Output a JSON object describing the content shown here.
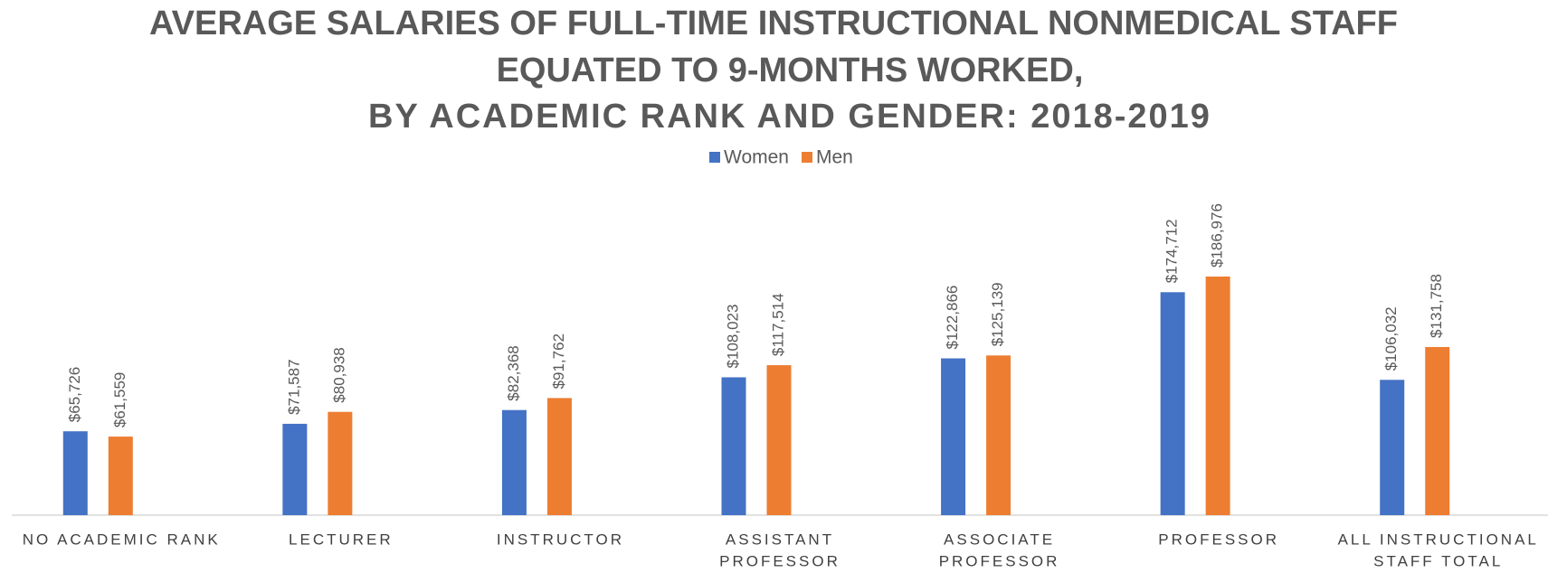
{
  "chart_data": {
    "type": "bar",
    "title": [
      "AVERAGE SALARIES OF FULL-TIME INSTRUCTIONAL NONMEDICAL STAFF",
      "EQUATED TO  9-MONTHS WORKED,",
      "BY ACADEMIC RANK AND GENDER: 2018-2019"
    ],
    "categories": [
      [
        "NO ACADEMIC RANK"
      ],
      [
        "LECTURER"
      ],
      [
        "INSTRUCTOR"
      ],
      [
        "ASSISTANT",
        "PROFESSOR"
      ],
      [
        "ASSOCIATE",
        "PROFESSOR"
      ],
      [
        "PROFESSOR"
      ],
      [
        "ALL INSTRUCTIONAL",
        "STAFF TOTAL"
      ]
    ],
    "series": [
      {
        "name": "Women",
        "color": "#4472c4",
        "values": [
          65726,
          71587,
          82368,
          108023,
          122866,
          174712,
          106032
        ],
        "value_labels": [
          "$65,726",
          "$71,587",
          "$82,368",
          "$108,023",
          "$122,866",
          "$174,712",
          "$106,032"
        ]
      },
      {
        "name": "Men",
        "color": "#ed7d31",
        "values": [
          61559,
          80938,
          91762,
          117514,
          125139,
          186976,
          131758
        ],
        "value_labels": [
          "$61,559",
          "$80,938",
          "$91,762",
          "$117,514",
          "$125,139",
          "$186,976",
          "$131,758"
        ]
      }
    ],
    "ylim": [
      0,
      250000
    ],
    "legend": "top"
  }
}
